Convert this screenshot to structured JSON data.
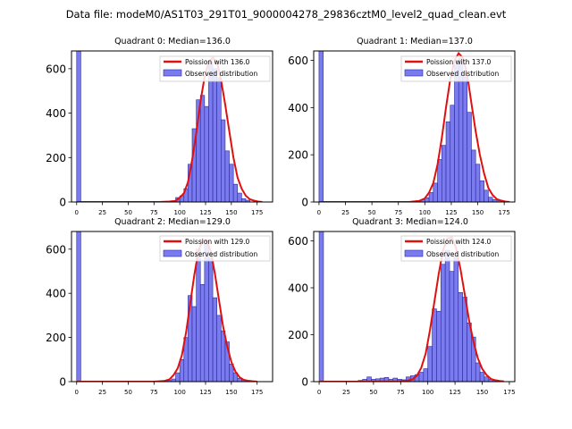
{
  "figure_title": "Data file: modeM0/AS1T03_291T01_9000004278_29836cztM0_level2_quad_clean.evt",
  "chart_data": [
    {
      "type": "bar",
      "title": "Quadrant 0: Median=136.0",
      "median": 136,
      "xlim": [
        -5,
        190
      ],
      "ylim": [
        0,
        680
      ],
      "xticks": [
        0,
        25,
        50,
        75,
        100,
        125,
        150,
        175
      ],
      "yticks": [
        0,
        200,
        400,
        600
      ],
      "bin_width": 4,
      "bins": [
        {
          "x0": 0,
          "value": 680
        },
        {
          "x0": 96,
          "value": 20
        },
        {
          "x0": 100,
          "value": 28
        },
        {
          "x0": 104,
          "value": 60
        },
        {
          "x0": 108,
          "value": 170
        },
        {
          "x0": 112,
          "value": 330
        },
        {
          "x0": 116,
          "value": 460
        },
        {
          "x0": 120,
          "value": 480
        },
        {
          "x0": 124,
          "value": 430
        },
        {
          "x0": 128,
          "value": 630
        },
        {
          "x0": 132,
          "value": 600
        },
        {
          "x0": 136,
          "value": 560
        },
        {
          "x0": 140,
          "value": 370
        },
        {
          "x0": 144,
          "value": 230
        },
        {
          "x0": 148,
          "value": 170
        },
        {
          "x0": 152,
          "value": 80
        },
        {
          "x0": 156,
          "value": 40
        },
        {
          "x0": 160,
          "value": 15
        },
        {
          "x0": 164,
          "value": 8
        }
      ],
      "curve_x": [
        0,
        80,
        90,
        96,
        100,
        104,
        108,
        112,
        116,
        120,
        124,
        128,
        132,
        136,
        140,
        144,
        148,
        152,
        156,
        160,
        164,
        168,
        172,
        176,
        180
      ],
      "curve_y": [
        0,
        0,
        2,
        5,
        20,
        40,
        90,
        190,
        310,
        450,
        560,
        630,
        650,
        630,
        550,
        440,
        320,
        200,
        110,
        60,
        28,
        12,
        6,
        2,
        0
      ],
      "legend": [
        "Poission with 136.0",
        "Observed distribution"
      ]
    },
    {
      "type": "bar",
      "title": "Quadrant 1: Median=137.0",
      "median": 137,
      "xlim": [
        -5,
        185
      ],
      "ylim": [
        0,
        640
      ],
      "xticks": [
        0,
        25,
        50,
        75,
        100,
        125,
        150,
        175
      ],
      "yticks": [
        0,
        200,
        400,
        600
      ],
      "bin_width": 4,
      "bins": [
        {
          "x0": 0,
          "value": 640
        },
        {
          "x0": 92,
          "value": 5
        },
        {
          "x0": 96,
          "value": 10
        },
        {
          "x0": 100,
          "value": 18
        },
        {
          "x0": 104,
          "value": 40
        },
        {
          "x0": 108,
          "value": 80
        },
        {
          "x0": 112,
          "value": 180
        },
        {
          "x0": 116,
          "value": 240
        },
        {
          "x0": 120,
          "value": 340
        },
        {
          "x0": 124,
          "value": 410
        },
        {
          "x0": 128,
          "value": 580
        },
        {
          "x0": 132,
          "value": 610
        },
        {
          "x0": 136,
          "value": 530
        },
        {
          "x0": 140,
          "value": 380
        },
        {
          "x0": 144,
          "value": 220
        },
        {
          "x0": 148,
          "value": 160
        },
        {
          "x0": 152,
          "value": 90
        },
        {
          "x0": 156,
          "value": 50
        },
        {
          "x0": 160,
          "value": 20
        },
        {
          "x0": 164,
          "value": 10
        },
        {
          "x0": 168,
          "value": 5
        }
      ],
      "curve_x": [
        0,
        85,
        95,
        100,
        104,
        108,
        112,
        116,
        120,
        124,
        128,
        132,
        136,
        140,
        144,
        148,
        152,
        156,
        160,
        164,
        168,
        172,
        176,
        180
      ],
      "curve_y": [
        0,
        0,
        5,
        15,
        40,
        80,
        160,
        270,
        400,
        520,
        600,
        630,
        610,
        540,
        420,
        300,
        200,
        120,
        60,
        30,
        12,
        6,
        2,
        0
      ],
      "legend": [
        "Poission with 137.0",
        "Observed distribution"
      ]
    },
    {
      "type": "bar",
      "title": "Quadrant 2: Median=129.0",
      "median": 129,
      "xlim": [
        -5,
        190
      ],
      "ylim": [
        0,
        680
      ],
      "xticks": [
        0,
        25,
        50,
        75,
        100,
        125,
        150,
        175
      ],
      "yticks": [
        0,
        200,
        400,
        600
      ],
      "bin_width": 4,
      "bins": [
        {
          "x0": 0,
          "value": 680
        },
        {
          "x0": 88,
          "value": 5
        },
        {
          "x0": 92,
          "value": 12
        },
        {
          "x0": 96,
          "value": 40
        },
        {
          "x0": 100,
          "value": 100
        },
        {
          "x0": 104,
          "value": 200
        },
        {
          "x0": 108,
          "value": 390
        },
        {
          "x0": 112,
          "value": 340
        },
        {
          "x0": 116,
          "value": 600
        },
        {
          "x0": 120,
          "value": 440
        },
        {
          "x0": 124,
          "value": 640
        },
        {
          "x0": 128,
          "value": 560
        },
        {
          "x0": 132,
          "value": 380
        },
        {
          "x0": 136,
          "value": 300
        },
        {
          "x0": 140,
          "value": 230
        },
        {
          "x0": 144,
          "value": 180
        },
        {
          "x0": 148,
          "value": 80
        },
        {
          "x0": 152,
          "value": 40
        },
        {
          "x0": 156,
          "value": 15
        },
        {
          "x0": 160,
          "value": 8
        }
      ],
      "curve_x": [
        0,
        75,
        85,
        90,
        94,
        98,
        102,
        106,
        110,
        114,
        118,
        122,
        126,
        130,
        134,
        138,
        142,
        146,
        150,
        154,
        158,
        162,
        166,
        170,
        175
      ],
      "curve_y": [
        0,
        0,
        3,
        10,
        30,
        60,
        120,
        220,
        350,
        480,
        590,
        640,
        640,
        590,
        490,
        370,
        250,
        160,
        90,
        45,
        20,
        8,
        4,
        2,
        0
      ],
      "legend": [
        "Poission with 129.0",
        "Observed distribution"
      ]
    },
    {
      "type": "bar",
      "title": "Quadrant 3: Median=124.0",
      "median": 124,
      "xlim": [
        -5,
        180
      ],
      "ylim": [
        0,
        640
      ],
      "xticks": [
        0,
        25,
        50,
        75,
        100,
        125,
        150,
        175
      ],
      "yticks": [
        0,
        200,
        400,
        600
      ],
      "bin_width": 4,
      "bins": [
        {
          "x0": 0,
          "value": 640
        },
        {
          "x0": 36,
          "value": 5
        },
        {
          "x0": 40,
          "value": 10
        },
        {
          "x0": 44,
          "value": 20
        },
        {
          "x0": 48,
          "value": 10
        },
        {
          "x0": 52,
          "value": 12
        },
        {
          "x0": 56,
          "value": 15
        },
        {
          "x0": 60,
          "value": 18
        },
        {
          "x0": 64,
          "value": 10
        },
        {
          "x0": 68,
          "value": 15
        },
        {
          "x0": 72,
          "value": 10
        },
        {
          "x0": 76,
          "value": 8
        },
        {
          "x0": 80,
          "value": 20
        },
        {
          "x0": 84,
          "value": 25
        },
        {
          "x0": 88,
          "value": 30
        },
        {
          "x0": 92,
          "value": 40
        },
        {
          "x0": 96,
          "value": 55
        },
        {
          "x0": 100,
          "value": 150
        },
        {
          "x0": 104,
          "value": 310
        },
        {
          "x0": 108,
          "value": 300
        },
        {
          "x0": 112,
          "value": 500
        },
        {
          "x0": 116,
          "value": 560
        },
        {
          "x0": 120,
          "value": 470
        },
        {
          "x0": 124,
          "value": 530
        },
        {
          "x0": 128,
          "value": 380
        },
        {
          "x0": 132,
          "value": 360
        },
        {
          "x0": 136,
          "value": 250
        },
        {
          "x0": 140,
          "value": 190
        },
        {
          "x0": 144,
          "value": 80
        },
        {
          "x0": 148,
          "value": 40
        },
        {
          "x0": 152,
          "value": 20
        },
        {
          "x0": 156,
          "value": 10
        },
        {
          "x0": 160,
          "value": 5
        }
      ],
      "curve_x": [
        0,
        70,
        80,
        86,
        90,
        94,
        98,
        102,
        106,
        110,
        114,
        118,
        122,
        126,
        130,
        134,
        138,
        142,
        146,
        150,
        154,
        158,
        162,
        166,
        170
      ],
      "curve_y": [
        0,
        0,
        3,
        10,
        25,
        60,
        120,
        220,
        340,
        460,
        560,
        610,
        615,
        570,
        480,
        370,
        260,
        170,
        100,
        55,
        28,
        12,
        6,
        3,
        1
      ],
      "legend": [
        "Poission with 124.0",
        "Observed distribution"
      ]
    }
  ],
  "colors": {
    "bar_fill": "#7b7bf0",
    "bar_edge": "#2a2a9a",
    "curve": "#e01010"
  }
}
